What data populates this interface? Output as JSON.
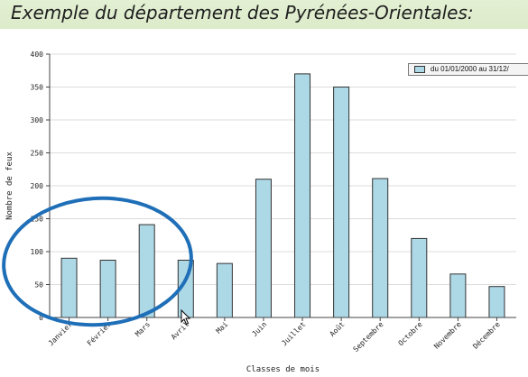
{
  "heading": "Exemple du département des Pyrénées-Orientales:",
  "chart_data": {
    "type": "bar",
    "categories": [
      "Janvier",
      "Février",
      "Mars",
      "Avril",
      "Mai",
      "Juin",
      "Juillet",
      "Août",
      "Septembre",
      "Octobre",
      "Novembre",
      "Décembre"
    ],
    "series": [
      {
        "name": "du 01/01/2000 au 31/12/",
        "values": [
          90,
          87,
          141,
          87,
          82,
          210,
          370,
          350,
          211,
          120,
          66,
          47
        ]
      }
    ],
    "xlabel": "Classes de mois",
    "ylabel": "Nombre de feux",
    "ylim": [
      0,
      400
    ],
    "yticks": [
      0,
      50,
      100,
      150,
      200,
      250,
      300,
      350,
      400
    ],
    "grid": true,
    "legend": "top-right",
    "bar_color": "#add8e6",
    "highlight_color": "#1f6fb8"
  }
}
